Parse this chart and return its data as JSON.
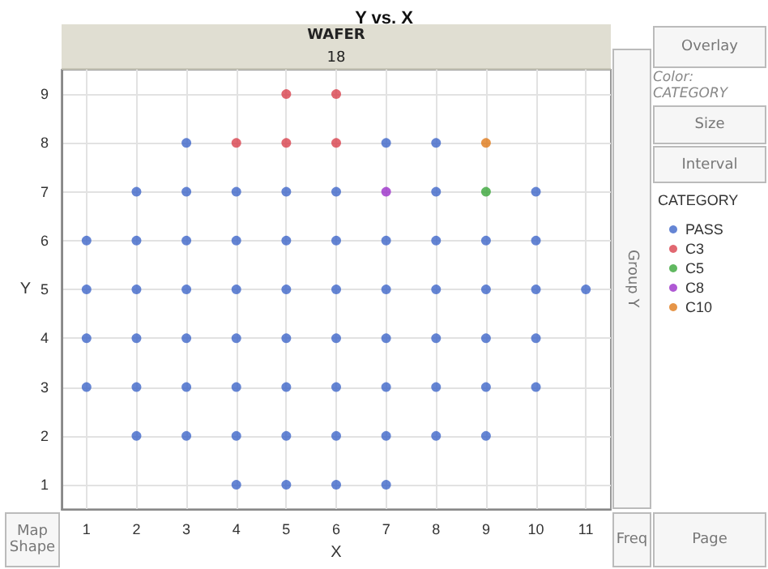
{
  "chart_data": {
    "type": "scatter",
    "title": "Y vs. X",
    "subtitle": "WAFER",
    "xlabel": "X",
    "ylabel": "Y",
    "legend_title": "CATEGORY",
    "annotations": [
      "18",
      "Overlay",
      "Color: CATEGORY",
      "Size",
      "Interval",
      "Group Y",
      "Map Shape",
      "Freq",
      "Page"
    ],
    "xlim": [
      0.5,
      11.5
    ],
    "xticks": [
      1,
      2,
      3,
      4,
      5,
      6,
      7,
      8,
      9,
      10,
      11
    ],
    "ylim": [
      0.5,
      9.5
    ],
    "yticks": [
      1,
      2,
      3,
      4,
      5,
      6,
      7,
      8,
      9
    ],
    "grid": true,
    "marker": "circle",
    "legend": "right",
    "series": [
      {
        "name": "PASS",
        "color": "#3f66c9",
        "x": [
          3,
          7,
          8,
          2,
          3,
          4,
          5,
          6,
          8,
          10,
          1,
          2,
          3,
          4,
          5,
          6,
          7,
          8,
          9,
          10,
          1,
          2,
          3,
          4,
          5,
          6,
          7,
          8,
          9,
          10,
          11,
          1,
          2,
          3,
          4,
          5,
          6,
          7,
          8,
          9,
          10,
          1,
          2,
          3,
          4,
          5,
          6,
          7,
          8,
          9,
          10,
          2,
          3,
          4,
          5,
          6,
          7,
          8,
          9,
          4,
          5,
          6,
          7
        ],
        "values": [
          8,
          8,
          8,
          7,
          7,
          7,
          7,
          7,
          7,
          7,
          6,
          6,
          6,
          6,
          6,
          6,
          6,
          6,
          6,
          6,
          5,
          5,
          5,
          5,
          5,
          5,
          5,
          5,
          5,
          5,
          5,
          4,
          4,
          4,
          4,
          4,
          4,
          4,
          4,
          4,
          4,
          3,
          3,
          3,
          3,
          3,
          3,
          3,
          3,
          3,
          3,
          2,
          2,
          2,
          2,
          2,
          2,
          2,
          2,
          1,
          1,
          1,
          1
        ]
      },
      {
        "name": "C3",
        "color": "#d9424e",
        "x": [
          5,
          6,
          4,
          5,
          6
        ],
        "values": [
          9,
          9,
          8,
          8,
          8
        ]
      },
      {
        "name": "C5",
        "color": "#3aa63a",
        "x": [
          9
        ],
        "values": [
          7
        ]
      },
      {
        "name": "C8",
        "color": "#9b2fc9",
        "x": [
          7
        ],
        "values": [
          7
        ]
      },
      {
        "name": "C10",
        "color": "#e07b1a",
        "x": [
          9
        ],
        "values": [
          8
        ]
      }
    ]
  }
}
